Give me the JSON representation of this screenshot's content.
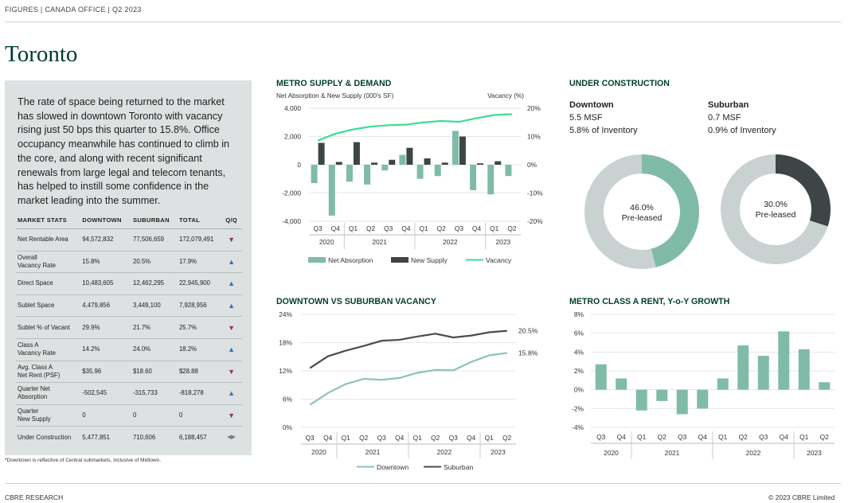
{
  "header": {
    "breadcrumb": "FIGURES  |  CANADA OFFICE  |  Q2 2023"
  },
  "title": "Toronto",
  "intro": "The rate of space being returned to the market has slowed in downtown Toronto with vacancy rising just 50 bps this quarter to 15.8%. Office occupancy meanwhile has continued to climb in the core, and along with recent significant renewals from large legal and telecom tenants, has helped to instill some confidence in the market leading into the summer.",
  "market_stats": {
    "headers": [
      "MARKET STATS",
      "DOWNTOWN",
      "SUBURBAN",
      "TOTAL",
      "Q/Q"
    ],
    "rows": [
      {
        "label": "Net Rentable Area",
        "downtown": "94,572,832",
        "suburban": "77,506,659",
        "total": "172,079,491",
        "trend": "down"
      },
      {
        "label": "Overall\nVacancy Rate",
        "downtown": "15.8%",
        "suburban": "20.5%",
        "total": "17.9%",
        "trend": "up"
      },
      {
        "label": "Direct Space",
        "downtown": "10,483,605",
        "suburban": "12,462,295",
        "total": "22,945,900",
        "trend": "up"
      },
      {
        "label": "Sublet Space",
        "downtown": "4,479,856",
        "suburban": "3,449,100",
        "total": "7,928,956",
        "trend": "up"
      },
      {
        "label": "Sublet % of Vacant",
        "downtown": "29.9%",
        "suburban": "21.7%",
        "total": "25.7%",
        "trend": "down"
      },
      {
        "label": "Class A\nVacancy Rate",
        "downtown": "14.2%",
        "suburban": "24.0%",
        "total": "18.2%",
        "trend": "up"
      },
      {
        "label": "Avg. Class A\nNet Rent (PSF)",
        "downtown": "$35.96",
        "suburban": "$18.60",
        "total": "$28.88",
        "trend": "down"
      },
      {
        "label": "Quarter Net\nAbsorption",
        "downtown": "-502,545",
        "suburban": "-315,733",
        "total": "-818,278",
        "trend": "up"
      },
      {
        "label": "Quarter\nNew Supply",
        "downtown": "0",
        "suburban": "0",
        "total": "0",
        "trend": "down"
      },
      {
        "label": "Under Construction",
        "downtown": "5,477,851",
        "suburban": "710,606",
        "total": "6,188,457",
        "trend": "flat"
      }
    ]
  },
  "footnote": "*Downtown is reflective of Central submarkets, inclusive of Midtown.",
  "under_construction": {
    "title": "UNDER CONSTRUCTION",
    "downtown": {
      "name": "Downtown",
      "msf": "5.5 MSF",
      "inventory": "5.8% of Inventory",
      "preleased_label": "46.0%",
      "preleased_text": "Pre-leased",
      "value": 46.0
    },
    "suburban": {
      "name": "Suburban",
      "msf": "0.7 MSF",
      "inventory": "0.9% of Inventory",
      "preleased_label": "30.0%",
      "preleased_text": "Pre-leased",
      "value": 30.0
    }
  },
  "footer": {
    "left": "CBRE RESEARCH",
    "right": "© 2023 CBRE Limited"
  },
  "colors": {
    "brand_green": "#013d2a",
    "sage": "#80bba8",
    "dark": "#3d4547",
    "mint": "#3ddc97",
    "grey": "#cad1d1",
    "downtown_line": "#8ec3b0",
    "suburban_line": "#484e50"
  },
  "chart_data": [
    {
      "type": "bar",
      "title": "METRO SUPPLY & DEMAND",
      "ylabel": "Net Absorption & New Supply (000's SF)",
      "y2label": "Vacancy (%)",
      "quarters": [
        "Q3",
        "Q4",
        "Q1",
        "Q2",
        "Q3",
        "Q4",
        "Q1",
        "Q2",
        "Q3",
        "Q4",
        "Q1",
        "Q2"
      ],
      "years": [
        {
          "label": "2020",
          "span": 2
        },
        {
          "label": "2021",
          "span": 4
        },
        {
          "label": "2022",
          "span": 4
        },
        {
          "label": "2023",
          "span": 2
        }
      ],
      "ylim": [
        -4000,
        4000
      ],
      "yticks": [
        "4,000",
        "2,000",
        "0",
        "-2,000",
        "-4,000"
      ],
      "y2lim": [
        -20,
        20
      ],
      "y2ticks": [
        "20%",
        "10%",
        "0%",
        "-10%",
        "-20%"
      ],
      "series": [
        {
          "name": "Net Absorption",
          "kind": "bar",
          "values": [
            -1300,
            -3600,
            -1200,
            -1400,
            -400,
            700,
            -1000,
            -800,
            2400,
            -1800,
            -2100,
            -800
          ]
        },
        {
          "name": "New Supply",
          "kind": "bar",
          "values": [
            1550,
            200,
            1600,
            150,
            350,
            1200,
            450,
            150,
            2000,
            100,
            250,
            0
          ]
        },
        {
          "name": "Vacancy",
          "kind": "line",
          "values": [
            8.5,
            11,
            12.5,
            13.5,
            14,
            14.2,
            15,
            15.5,
            15.2,
            16.5,
            17.6,
            17.9
          ]
        }
      ]
    },
    {
      "type": "line",
      "title": "DOWNTOWN VS SUBURBAN VACANCY",
      "quarters": [
        "Q3",
        "Q4",
        "Q1",
        "Q2",
        "Q3",
        "Q4",
        "Q1",
        "Q2",
        "Q3",
        "Q4",
        "Q1",
        "Q2"
      ],
      "years": [
        {
          "label": "2020",
          "span": 2
        },
        {
          "label": "2021",
          "span": 4
        },
        {
          "label": "2022",
          "span": 4
        },
        {
          "label": "2023",
          "span": 2
        }
      ],
      "ylim": [
        0,
        24
      ],
      "yticks": [
        "24%",
        "18%",
        "12%",
        "6%",
        "0%"
      ],
      "series": [
        {
          "name": "Downtown",
          "values": [
            4.8,
            7.3,
            9.2,
            10.3,
            10.1,
            10.5,
            11.6,
            12.2,
            12.1,
            13.9,
            15.3,
            15.8
          ],
          "end_label": "15.8%"
        },
        {
          "name": "Suburban",
          "values": [
            12.6,
            15.1,
            16.3,
            17.3,
            18.4,
            18.6,
            19.3,
            19.9,
            19.1,
            19.5,
            20.2,
            20.5
          ],
          "end_label": "20.5%"
        }
      ]
    },
    {
      "type": "bar",
      "title": "METRO CLASS A RENT, Y-o-Y GROWTH",
      "quarters": [
        "Q3",
        "Q4",
        "Q1",
        "Q2",
        "Q3",
        "Q4",
        "Q1",
        "Q2",
        "Q3",
        "Q4",
        "Q1",
        "Q2"
      ],
      "years": [
        {
          "label": "2020",
          "span": 2
        },
        {
          "label": "2021",
          "span": 4
        },
        {
          "label": "2022",
          "span": 4
        },
        {
          "label": "2023",
          "span": 2
        }
      ],
      "ylim": [
        -4,
        8
      ],
      "yticks": [
        "8%",
        "6%",
        "4%",
        "2%",
        "0%",
        "-2%",
        "-4%"
      ],
      "values": [
        2.7,
        1.2,
        -2.2,
        -1.2,
        -2.6,
        -2.0,
        1.2,
        4.7,
        3.6,
        6.2,
        4.3,
        0.8
      ]
    }
  ]
}
